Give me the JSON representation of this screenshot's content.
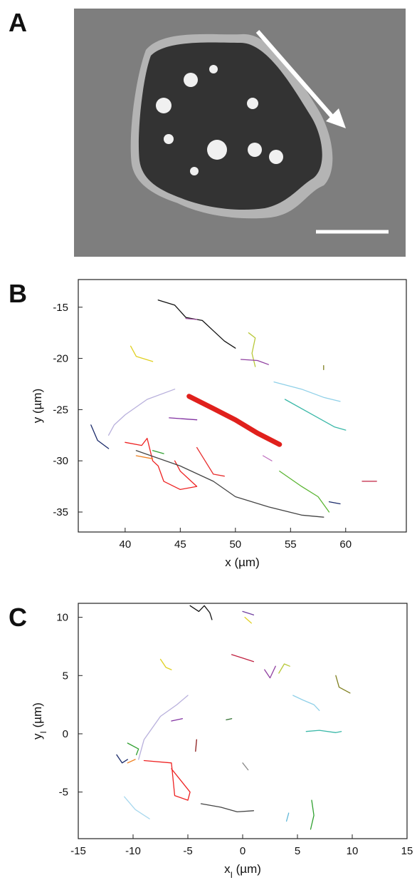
{
  "figure": {
    "panel_labels": [
      "A",
      "B",
      "C"
    ]
  },
  "chart_data": [
    {
      "type": "line",
      "xlabel": [
        "x (µm)"
      ],
      "ylabel": [
        "y (µm)"
      ],
      "xlim": [
        35.75,
        65.5
      ],
      "xticks": [
        40,
        45,
        50,
        55,
        60
      ],
      "ylim": [
        -36.95,
        -12.3
      ],
      "yticks": [
        -15,
        -20,
        -25,
        -30,
        -35
      ],
      "series": [
        {
          "color": "#111111",
          "x": [
            43,
            44.5,
            45.5,
            47,
            48,
            49,
            50
          ],
          "values": [
            -14.3,
            -14.8,
            -16,
            -16.3,
            -17.3,
            -18.3,
            -19
          ]
        },
        {
          "color": "#e0201c",
          "width": 7,
          "x": [
            45.8,
            48,
            50,
            52,
            54
          ],
          "values": [
            -23.7,
            -24.9,
            -26,
            -27.3,
            -28.4
          ]
        },
        {
          "color": "#b8b0dc",
          "x": [
            38.5,
            39,
            40,
            42,
            44.5
          ],
          "values": [
            -27.5,
            -26.5,
            -25.5,
            -24,
            -23
          ]
        },
        {
          "color": "#ee2222",
          "x": [
            40,
            41.5,
            42,
            42.5,
            43,
            43.5,
            45,
            46.5,
            45,
            44.5
          ],
          "values": [
            -28.2,
            -28.5,
            -27.8,
            -30,
            -30.5,
            -32,
            -32.8,
            -32.5,
            -31,
            -30
          ]
        },
        {
          "color": "#444444",
          "x": [
            41,
            45,
            48,
            50,
            53,
            56,
            58
          ],
          "values": [
            -29,
            -30.5,
            -32,
            -33.5,
            -34.5,
            -35.3,
            -35.5
          ]
        },
        {
          "color": "#8fd0e8",
          "x": [
            53.5,
            56,
            58,
            59.5
          ],
          "values": [
            -22.3,
            -23,
            -23.8,
            -24.2
          ]
        },
        {
          "color": "#3ab8a8",
          "x": [
            54.5,
            57,
            59,
            60
          ],
          "values": [
            -24,
            -25.5,
            -26.7,
            -27
          ]
        },
        {
          "color": "#5ab532",
          "x": [
            54,
            56,
            57.5,
            58.5
          ],
          "values": [
            -31,
            -32.5,
            -33.5,
            -35
          ]
        },
        {
          "color": "#e0d020",
          "x": [
            40.5,
            41,
            42.5
          ],
          "values": [
            -18.8,
            -19.8,
            -20.3
          ]
        },
        {
          "color": "#b8c838",
          "x": [
            51.2,
            51.8,
            51.5,
            51.8
          ],
          "values": [
            -17.5,
            -18,
            -19.5,
            -20.8
          ]
        },
        {
          "color": "#9040a0",
          "x": [
            50.5,
            52,
            53
          ],
          "values": [
            -20.1,
            -20.2,
            -20.6
          ]
        },
        {
          "color": "#1a2a6a",
          "x": [
            36.9,
            37.5,
            38.5
          ],
          "values": [
            -26.5,
            -28,
            -28.8
          ]
        },
        {
          "color": "#f08020",
          "x": [
            41,
            42.5
          ],
          "values": [
            -29.5,
            -29.8
          ]
        },
        {
          "color": "#30a030",
          "x": [
            42.5,
            43.5
          ],
          "values": [
            -29,
            -29.3
          ]
        },
        {
          "color": "#e83030",
          "x": [
            46.5,
            48,
            49
          ],
          "values": [
            -28.7,
            -31.3,
            -31.5
          ]
        },
        {
          "color": "#8030a0",
          "x": [
            44,
            46.5
          ],
          "values": [
            -25.8,
            -26
          ]
        },
        {
          "color": "#c070c0",
          "x": [
            52.5,
            53.3
          ],
          "values": [
            -29.5,
            -30
          ]
        },
        {
          "color": "#1a2a6a",
          "x": [
            58.5,
            59.5
          ],
          "values": [
            -34,
            -34.2
          ]
        },
        {
          "color": "#a050a0",
          "x": [
            45.5,
            46.5
          ],
          "values": [
            -16.1,
            -16.2
          ]
        },
        {
          "color": "#808020",
          "x": [
            58,
            58
          ],
          "values": [
            -21.1,
            -20.7
          ]
        },
        {
          "color": "#c02040",
          "x": [
            61.5,
            62.8
          ],
          "values": [
            -32,
            -32
          ]
        }
      ]
    },
    {
      "type": "line",
      "xlabel": [
        "x",
        "I",
        " (µm)"
      ],
      "ylabel": [
        "y",
        "I",
        " (µm)"
      ],
      "xlim": [
        -15,
        15
      ],
      "xticks": [
        -15,
        -10,
        -5,
        0,
        5,
        10,
        15
      ],
      "ylim": [
        -9,
        11.2
      ],
      "yticks": [
        10,
        5,
        0,
        -5
      ],
      "series": [
        {
          "color": "#111111",
          "x": [
            -4.8,
            -4,
            -3.5,
            -3,
            -2.8
          ],
          "values": [
            11,
            10.5,
            11,
            10.4,
            9.8
          ]
        },
        {
          "color": "#b8b0dc",
          "x": [
            -9.5,
            -9,
            -7.5,
            -6,
            -5
          ],
          "values": [
            -2.2,
            -0.5,
            1.5,
            2.5,
            3.3
          ]
        },
        {
          "color": "#ee2222",
          "x": [
            -9,
            -6.5,
            -6.2,
            -5,
            -4.8,
            -6.5
          ],
          "values": [
            -2.3,
            -2.5,
            -5.3,
            -5.7,
            -5,
            -3
          ]
        },
        {
          "color": "#1a2a6a",
          "x": [
            -11.5,
            -11,
            -10.5
          ],
          "values": [
            -1.8,
            -2.5,
            -2.2
          ]
        },
        {
          "color": "#30a030",
          "x": [
            -10.5,
            -9.5,
            -9.7
          ],
          "values": [
            -0.8,
            -1.3,
            -1.8
          ]
        },
        {
          "color": "#f08020",
          "x": [
            -10.5,
            -9.8
          ],
          "values": [
            -2.5,
            -2.2
          ]
        },
        {
          "color": "#a8d8ee",
          "x": [
            -10.8,
            -9.8,
            -8.5
          ],
          "values": [
            -5.4,
            -6.5,
            -7.3
          ]
        },
        {
          "color": "#444444",
          "x": [
            -3.8,
            -2,
            -0.5,
            1
          ],
          "values": [
            -6,
            -6.3,
            -6.7,
            -6.6
          ]
        },
        {
          "color": "#e0d020",
          "x": [
            -7.5,
            -7,
            -6.5
          ],
          "values": [
            6.4,
            5.7,
            5.5
          ]
        },
        {
          "color": "#8030a0",
          "x": [
            -6.5,
            -5.5
          ],
          "values": [
            1.1,
            1.3
          ]
        },
        {
          "color": "#307030",
          "x": [
            -1.5,
            -1
          ],
          "values": [
            1.2,
            1.3
          ]
        },
        {
          "color": "#9040a0",
          "x": [
            2,
            2.5,
            3
          ],
          "values": [
            5.5,
            4.8,
            5.8
          ]
        },
        {
          "color": "#b8c838",
          "x": [
            3.3,
            3.8,
            4.3
          ],
          "values": [
            5.2,
            6,
            5.8
          ]
        },
        {
          "color": "#8fd0e8",
          "x": [
            4.6,
            5.5,
            6.5,
            7
          ],
          "values": [
            3.3,
            2.9,
            2.5,
            2
          ]
        },
        {
          "color": "#3ab8a8",
          "x": [
            5.8,
            7,
            8.5,
            9
          ],
          "values": [
            0.2,
            0.3,
            0.1,
            0.2
          ]
        },
        {
          "color": "#808020",
          "x": [
            8.5,
            8.8,
            9.8
          ],
          "values": [
            5,
            4,
            3.5
          ]
        },
        {
          "color": "#c02040",
          "x": [
            -1,
            0,
            1
          ],
          "values": [
            6.8,
            6.5,
            6.2
          ]
        },
        {
          "color": "#7040a0",
          "x": [
            0,
            1
          ],
          "values": [
            10.5,
            10.2
          ]
        },
        {
          "color": "#e0d020",
          "x": [
            0.2,
            0.8
          ],
          "values": [
            10,
            9.5
          ]
        },
        {
          "color": "#30a030",
          "x": [
            6.3,
            6.5,
            6.2
          ],
          "values": [
            -5.7,
            -7,
            -8.2
          ]
        },
        {
          "color": "#60b8d8",
          "x": [
            4.2,
            4
          ],
          "values": [
            -6.8,
            -7.5
          ]
        },
        {
          "color": "#888888",
          "x": [
            0,
            0.5
          ],
          "values": [
            -2.5,
            -3.1
          ]
        },
        {
          "color": "#8b1a1a",
          "x": [
            -4.2,
            -4.3
          ],
          "values": [
            -0.5,
            -1.5
          ]
        }
      ]
    }
  ]
}
